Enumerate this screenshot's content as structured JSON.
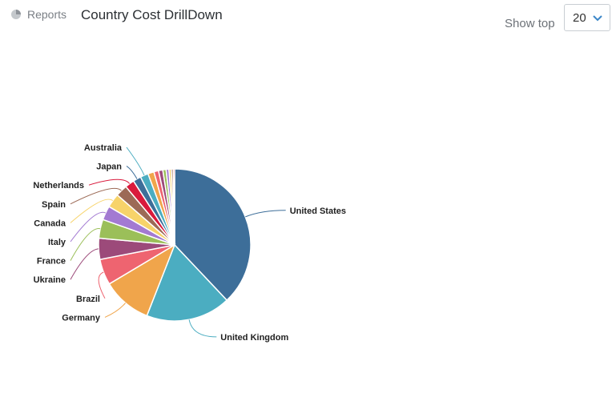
{
  "header": {
    "breadcrumb": "Reports",
    "title": "Country Cost DrillDown",
    "show_top_label": "Show top",
    "show_top_value": "20"
  },
  "chart_data": {
    "type": "pie",
    "title": "",
    "slices": [
      {
        "label": "United States",
        "value": 38.0,
        "color": "#3d6e99"
      },
      {
        "label": "United Kingdom",
        "value": 18.0,
        "color": "#4badc1"
      },
      {
        "label": "Germany",
        "value": 10.5,
        "color": "#f0a54b"
      },
      {
        "label": "Brazil",
        "value": 5.5,
        "color": "#ee6470"
      },
      {
        "label": "Ukraine",
        "value": 4.5,
        "color": "#9c4a7a"
      },
      {
        "label": "France",
        "value": 4.0,
        "color": "#9bbf59"
      },
      {
        "label": "Italy",
        "value": 3.0,
        "color": "#a37ad2"
      },
      {
        "label": "Canada",
        "value": 3.0,
        "color": "#f7d36a"
      },
      {
        "label": "Spain",
        "value": 2.5,
        "color": "#9c6a56"
      },
      {
        "label": "Netherlands",
        "value": 2.0,
        "color": "#d91a3c"
      },
      {
        "label": "Japan",
        "value": 1.7,
        "color": "#3d6e99"
      },
      {
        "label": "Australia",
        "value": 1.7,
        "color": "#4badc1"
      },
      {
        "label": "",
        "value": 1.3,
        "color": "#f0a54b"
      },
      {
        "label": "",
        "value": 1.0,
        "color": "#ee6470"
      },
      {
        "label": "",
        "value": 0.9,
        "color": "#9c4a7a"
      },
      {
        "label": "",
        "value": 0.7,
        "color": "#9bbf59"
      },
      {
        "label": "",
        "value": 0.6,
        "color": "#a37ad2"
      },
      {
        "label": "",
        "value": 0.5,
        "color": "#f7d36a"
      },
      {
        "label": "",
        "value": 0.4,
        "color": "#9c6a56"
      },
      {
        "label": "",
        "value": 0.3,
        "color": "#d91a3c"
      }
    ]
  }
}
